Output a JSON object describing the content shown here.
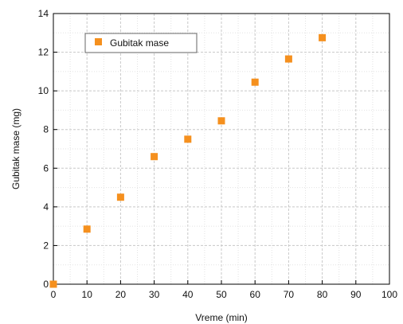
{
  "chart_data": {
    "type": "scatter",
    "title": "",
    "xlabel": "Vreme (min)",
    "ylabel": "Gubitak mase (mg)",
    "xlim": [
      0,
      100
    ],
    "ylim": [
      0,
      14
    ],
    "x_ticks": [
      "0",
      "10",
      "20",
      "30",
      "40",
      "50",
      "60",
      "70",
      "80",
      "90",
      "100"
    ],
    "y_ticks": [
      "0",
      "2",
      "4",
      "6",
      "8",
      "10",
      "12",
      "14"
    ],
    "grid": true,
    "legend_position": "top-left",
    "series": [
      {
        "name": "Gubitak mase",
        "color": "#f5901e",
        "marker": "square",
        "x": [
          0,
          10,
          20,
          30,
          40,
          50,
          60,
          70,
          80
        ],
        "y": [
          0,
          2.85,
          4.5,
          6.6,
          7.5,
          8.45,
          10.45,
          11.65,
          12.75
        ]
      }
    ]
  }
}
